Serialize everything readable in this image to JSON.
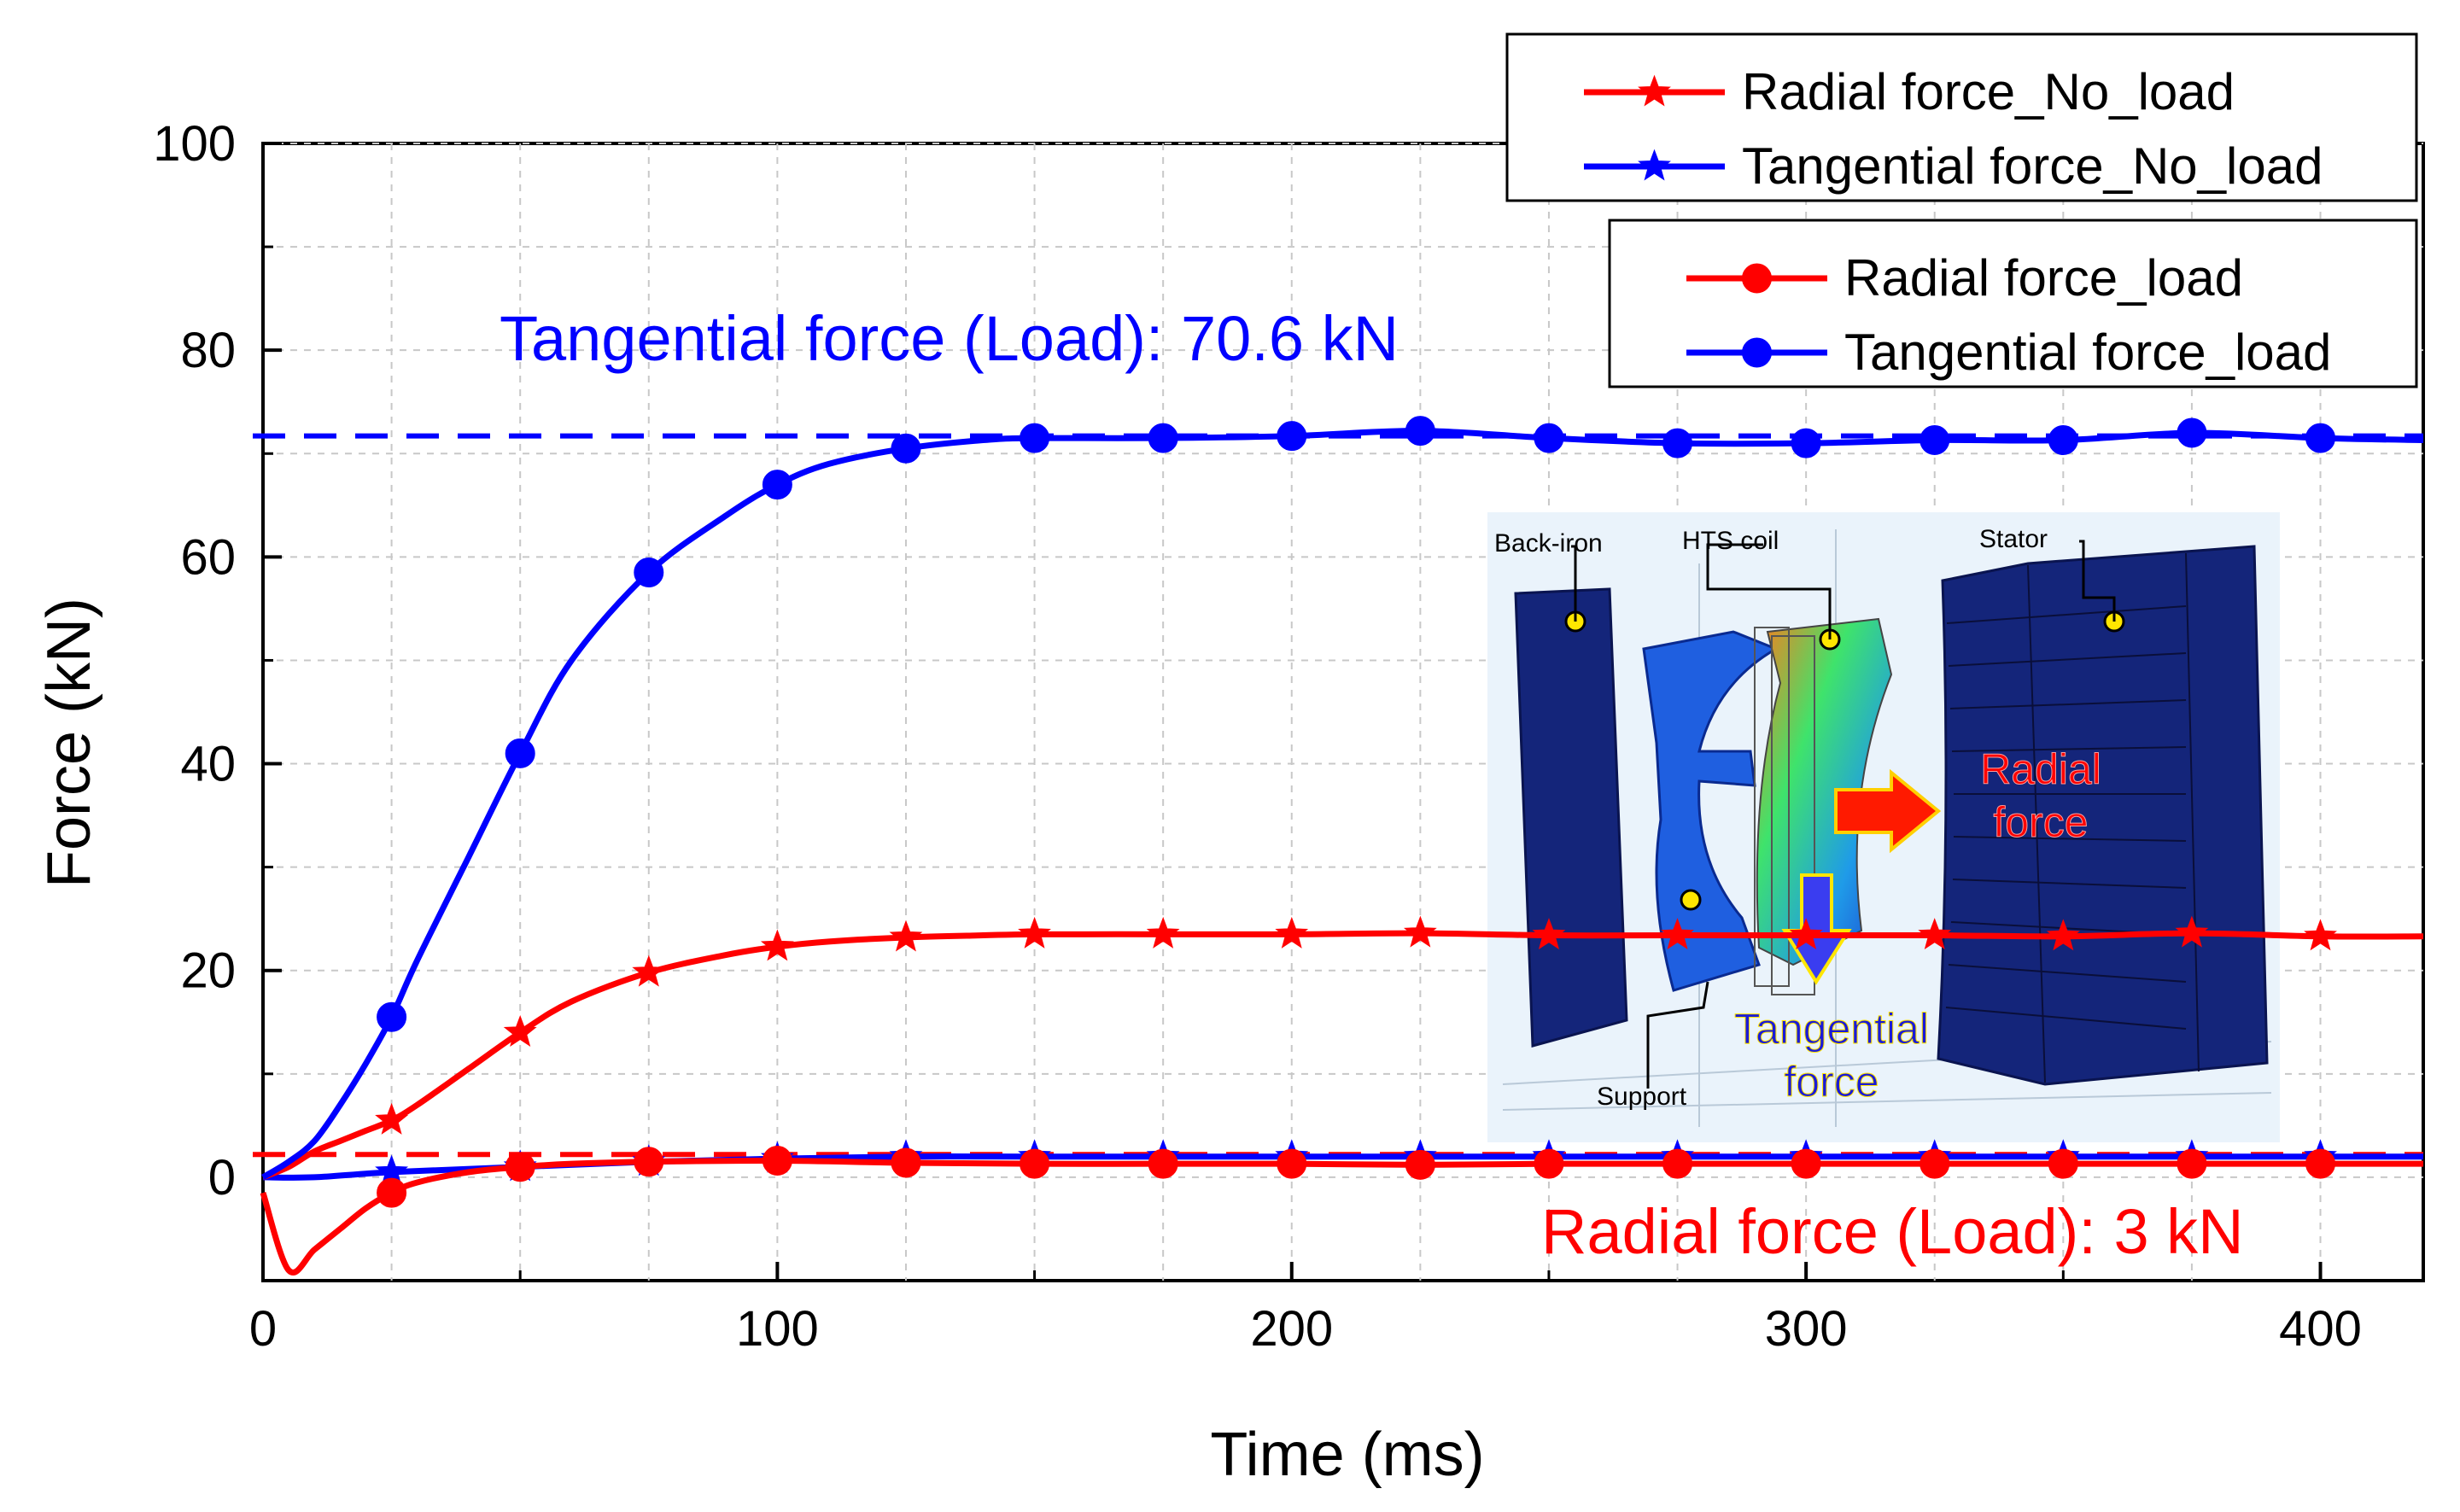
{
  "chart_data": {
    "type": "line",
    "title": "",
    "xlabel": "Time (ms)",
    "ylabel": "Force (kN)",
    "xlim": [
      0,
      420
    ],
    "ylim": [
      -10,
      100
    ],
    "xticks": [
      0,
      100,
      200,
      300,
      400
    ],
    "yticks": [
      0,
      20,
      40,
      60,
      80,
      100
    ],
    "grid": true,
    "legend_groups": [
      {
        "placement": "top-right",
        "entries": [
          "Radial force_No_load",
          "Tangential force_No_load"
        ]
      },
      {
        "placement": "upper-right",
        "entries": [
          "Radial force_load",
          "Tangential force_load"
        ]
      }
    ],
    "series": [
      {
        "name": "Radial force_No_load",
        "color": "#ff0000",
        "marker": "star",
        "x": [
          0,
          5,
          10,
          15,
          20,
          25,
          30,
          40,
          50,
          60,
          75,
          90,
          100,
          110,
          125,
          140,
          150,
          175,
          200,
          225,
          250,
          275,
          300,
          325,
          350,
          375,
          400,
          420
        ],
        "y": [
          0,
          1,
          2.5,
          3.5,
          4.5,
          5.5,
          7,
          10.5,
          14,
          17,
          19.8,
          21.5,
          22.3,
          22.8,
          23.2,
          23.4,
          23.5,
          23.5,
          23.5,
          23.6,
          23.4,
          23.4,
          23.4,
          23.4,
          23.3,
          23.6,
          23.3,
          23.3
        ],
        "marker_x": [
          25,
          50,
          75,
          100,
          125,
          150,
          175,
          200,
          225,
          250,
          275,
          300,
          325,
          350,
          375,
          400
        ]
      },
      {
        "name": "Tangential force_No_load",
        "color": "#0000ff",
        "marker": "star",
        "x": [
          0,
          10,
          25,
          50,
          75,
          100,
          125,
          150,
          175,
          200,
          225,
          250,
          275,
          300,
          325,
          350,
          375,
          400,
          420
        ],
        "y": [
          0,
          0,
          0.5,
          1,
          1.5,
          1.8,
          2,
          2,
          2,
          2,
          2,
          2,
          2,
          2,
          2,
          2,
          2,
          2,
          2
        ],
        "marker_x": [
          25,
          50,
          75,
          100,
          125,
          150,
          175,
          200,
          225,
          250,
          275,
          300,
          325,
          350,
          375,
          400
        ]
      },
      {
        "name": "Radial force_load",
        "color": "#ff0000",
        "marker": "circle",
        "x": [
          0,
          5,
          10,
          15,
          20,
          25,
          30,
          40,
          50,
          60,
          75,
          100,
          125,
          150,
          175,
          200,
          225,
          250,
          275,
          300,
          325,
          350,
          375,
          400,
          420
        ],
        "y": [
          -1.5,
          -9,
          -7,
          -5,
          -3,
          -1.5,
          -0.5,
          0.5,
          1,
          1.3,
          1.5,
          1.6,
          1.4,
          1.3,
          1.3,
          1.3,
          1.2,
          1.3,
          1.3,
          1.3,
          1.3,
          1.3,
          1.3,
          1.3,
          1.3
        ],
        "marker_x": [
          25,
          50,
          75,
          100,
          125,
          150,
          175,
          200,
          225,
          250,
          275,
          300,
          325,
          350,
          375,
          400
        ]
      },
      {
        "name": "Tangential force_load",
        "color": "#0000ff",
        "marker": "circle",
        "x": [
          0,
          5,
          10,
          15,
          20,
          25,
          30,
          40,
          50,
          60,
          75,
          90,
          100,
          110,
          125,
          140,
          150,
          175,
          200,
          225,
          250,
          275,
          300,
          325,
          350,
          375,
          400,
          420
        ],
        "y": [
          0,
          1.5,
          3.5,
          7,
          11,
          15.5,
          21,
          31,
          41,
          50,
          58.5,
          64,
          67,
          69,
          70.5,
          71.3,
          71.5,
          71.5,
          71.7,
          72.2,
          71.5,
          71,
          71,
          71.3,
          71.3,
          72,
          71.5,
          71.3
        ],
        "marker_x": [
          25,
          50,
          75,
          100,
          125,
          150,
          175,
          200,
          225,
          250,
          275,
          300,
          325,
          350,
          375,
          400
        ]
      }
    ],
    "reference_lines": [
      {
        "name": "tangential-load-reference",
        "y": 71.7,
        "color": "#0000ff",
        "style": "dashed"
      },
      {
        "name": "radial-load-reference",
        "y": 2.2,
        "color": "#ff0000",
        "style": "dashed"
      }
    ],
    "annotations": [
      {
        "name": "tangential-annotation",
        "text": "Tangential force (Load): 70.6 kN",
        "color": "#0000ff"
      },
      {
        "name": "radial-annotation",
        "text": "Radial force (Load): 3 kN",
        "color": "#ff0000"
      }
    ],
    "inset": {
      "labels": [
        "Back-iron",
        "HTS coil",
        "Stator",
        "Support"
      ],
      "arrow_labels": [
        {
          "text": "Radial force",
          "lines": [
            "Radial",
            "force"
          ],
          "color": "#ff0000"
        },
        {
          "text": "Tangential force",
          "lines": [
            "Tangential",
            "force"
          ],
          "color": "#0000ff"
        }
      ]
    }
  }
}
